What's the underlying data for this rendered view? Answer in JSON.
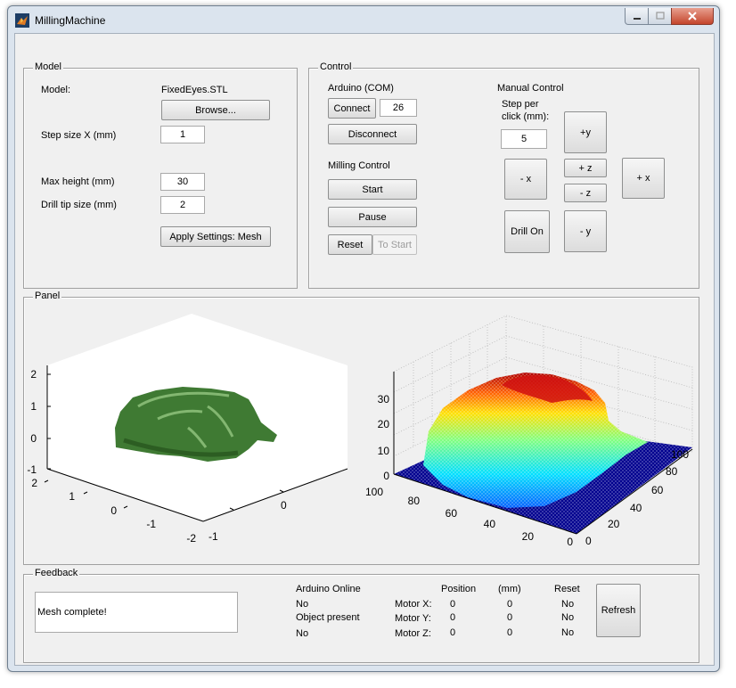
{
  "window": {
    "title": "MillingMachine"
  },
  "model_panel": {
    "title": "Model",
    "model_label": "Model:",
    "model_file": "FixedEyes.STL",
    "browse_label": "Browse...",
    "step_size_label": "Step size X (mm)",
    "step_size_value": "1",
    "max_height_label": "Max height (mm)",
    "max_height_value": "30",
    "drill_tip_label": "Drill tip size (mm)",
    "drill_tip_value": "2",
    "apply_label": "Apply Settings: Mesh"
  },
  "control_panel": {
    "title": "Control",
    "arduino_label": "Arduino (COM)",
    "connect_label": "Connect",
    "com_value": "26",
    "disconnect_label": "Disconnect",
    "milling_label": "Milling Control",
    "start_label": "Start",
    "pause_label": "Pause",
    "reset_label": "Reset",
    "to_start_label": "To Start",
    "manual_label": "Manual Control",
    "step_per_label_1": "Step per",
    "step_per_label_2": "click (mm):",
    "step_per_value": "5",
    "plus_y": "+y",
    "minus_x": "- x",
    "plus_z": "+ z",
    "minus_z": "- z",
    "plus_x": "+ x",
    "drill_on": "Drill On",
    "minus_y": "- y"
  },
  "plot_panel": {
    "title": "Panel",
    "left_plot": {
      "z_ticks": [
        "2",
        "1",
        "0",
        "-1"
      ],
      "y_ticks": [
        "2",
        "1",
        "0",
        "-1",
        "-2"
      ],
      "x_ticks": [
        "0",
        "-1"
      ],
      "surface_color": "#3f7a33"
    },
    "right_plot": {
      "z_ticks": [
        "30",
        "20",
        "10",
        "0"
      ],
      "x_ticks": [
        "100",
        "80",
        "60",
        "40",
        "20",
        "0"
      ],
      "y_ticks": [
        "0",
        "20",
        "40",
        "60",
        "80",
        "100"
      ],
      "colormap": [
        "#00008f",
        "#0060ff",
        "#00e0ff",
        "#80ff80",
        "#ffe000",
        "#ff6000",
        "#b00000"
      ]
    }
  },
  "feedback_panel": {
    "title": "Feedback",
    "message": "Mesh complete!",
    "arduino_online_label": "Arduino Online",
    "arduino_online_value": "No",
    "object_present_label": "Object present",
    "object_present_value": "No",
    "position_header": "Position",
    "mm_header": "(mm)",
    "reset_header": "Reset",
    "motors": [
      {
        "label": "Motor X:",
        "position": "0",
        "mm": "0",
        "reset": "No"
      },
      {
        "label": "Motor Y:",
        "position": "0",
        "mm": "0",
        "reset": "No"
      },
      {
        "label": "Motor Z:",
        "position": "0",
        "mm": "0",
        "reset": "No"
      }
    ],
    "refresh_label": "Refresh"
  }
}
